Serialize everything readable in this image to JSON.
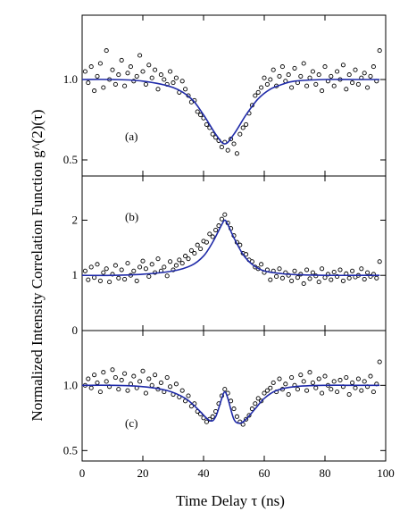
{
  "figure": {
    "ylabel": "Normalized Intensity Correlation Function g^(2)(τ)",
    "xlabel": "Time Delay τ (ns)"
  },
  "colors": {
    "fit": "#1f2aa8",
    "points": "#000000",
    "axes": "#000000"
  },
  "chart_data": [
    {
      "type": "scatter",
      "panel_label": "(a)",
      "xlim": [
        0,
        100
      ],
      "ylim": [
        0.4,
        1.4
      ],
      "xticks": [
        0,
        20,
        40,
        60,
        80,
        100
      ],
      "yticks": [
        0.5,
        1.0
      ],
      "ytick_labels": [
        "0.5",
        "1.0"
      ],
      "show_xtick_labels": false,
      "fit": {
        "x": [
          0,
          10,
          20,
          30,
          36,
          40,
          44,
          47,
          50,
          54,
          58,
          62,
          66,
          70,
          80,
          90,
          98
        ],
        "y": [
          1.0,
          1.0,
          0.99,
          0.95,
          0.88,
          0.78,
          0.66,
          0.6,
          0.66,
          0.78,
          0.88,
          0.94,
          0.97,
          0.99,
          1.0,
          1.0,
          1.0
        ]
      },
      "points": {
        "x": [
          1,
          2,
          3,
          4,
          5,
          6,
          7,
          8,
          9,
          10,
          11,
          12,
          13,
          14,
          15,
          16,
          17,
          18,
          19,
          20,
          21,
          22,
          23,
          24,
          25,
          26,
          27,
          28,
          29,
          30,
          31,
          32,
          33,
          34,
          35,
          36,
          37,
          38,
          39,
          40,
          41,
          42,
          43,
          44,
          45,
          46,
          47,
          48,
          49,
          50,
          51,
          52,
          53,
          54,
          55,
          56,
          57,
          58,
          59,
          60,
          61,
          62,
          63,
          64,
          65,
          66,
          67,
          68,
          69,
          70,
          71,
          72,
          73,
          74,
          75,
          76,
          77,
          78,
          79,
          80,
          81,
          82,
          83,
          84,
          85,
          86,
          87,
          88,
          89,
          90,
          91,
          92,
          93,
          94,
          95,
          96,
          97,
          98
        ],
        "y": [
          1.05,
          0.98,
          1.08,
          0.93,
          1.02,
          1.1,
          0.95,
          1.18,
          1.0,
          1.06,
          0.97,
          1.03,
          1.12,
          0.96,
          1.04,
          1.08,
          0.99,
          1.02,
          1.15,
          1.05,
          0.97,
          1.09,
          1.01,
          1.06,
          0.94,
          1.03,
          1.0,
          0.97,
          1.05,
          0.98,
          1.01,
          0.92,
          0.99,
          0.94,
          0.9,
          0.86,
          0.87,
          0.8,
          0.78,
          0.76,
          0.72,
          0.7,
          0.66,
          0.64,
          0.62,
          0.58,
          0.61,
          0.56,
          0.63,
          0.6,
          0.54,
          0.66,
          0.7,
          0.72,
          0.79,
          0.84,
          0.9,
          0.92,
          0.95,
          1.01,
          0.97,
          1.0,
          1.06,
          0.96,
          1.02,
          1.08,
          0.99,
          1.03,
          0.95,
          1.07,
          0.98,
          1.02,
          1.1,
          0.96,
          1.01,
          1.05,
          0.97,
          1.03,
          0.93,
          1.08,
          0.99,
          1.02,
          0.96,
          1.05,
          1.0,
          1.09,
          0.94,
          1.03,
          0.98,
          1.06,
          0.97,
          1.01,
          1.04,
          0.95,
          1.02,
          1.08,
          0.99,
          1.18
        ]
      }
    },
    {
      "type": "scatter",
      "panel_label": "(b)",
      "xlim": [
        0,
        100
      ],
      "ylim": [
        0,
        2.8
      ],
      "xticks": [
        0,
        20,
        40,
        60,
        80,
        100
      ],
      "yticks": [
        0,
        1,
        2
      ],
      "ytick_labels": [
        "0",
        "1",
        "2"
      ],
      "show_xtick_labels": false,
      "fit": {
        "x": [
          0,
          10,
          20,
          30,
          36,
          40,
          43,
          46,
          47,
          48,
          50,
          53,
          56,
          60,
          66,
          72,
          80,
          90,
          98
        ],
        "y": [
          1.0,
          1.0,
          1.02,
          1.08,
          1.18,
          1.35,
          1.6,
          1.92,
          2.0,
          1.92,
          1.68,
          1.38,
          1.2,
          1.08,
          1.03,
          1.01,
          1.0,
          1.0,
          1.0
        ]
      },
      "points": {
        "x": [
          1,
          2,
          3,
          4,
          5,
          6,
          7,
          8,
          9,
          10,
          11,
          12,
          13,
          14,
          15,
          16,
          17,
          18,
          19,
          20,
          21,
          22,
          23,
          24,
          25,
          26,
          27,
          28,
          29,
          30,
          31,
          32,
          33,
          34,
          35,
          36,
          37,
          38,
          39,
          40,
          41,
          42,
          43,
          44,
          45,
          46,
          47,
          48,
          49,
          50,
          51,
          52,
          53,
          54,
          55,
          56,
          57,
          58,
          59,
          60,
          61,
          62,
          63,
          64,
          65,
          66,
          67,
          68,
          69,
          70,
          71,
          72,
          73,
          74,
          75,
          76,
          77,
          78,
          79,
          80,
          81,
          82,
          83,
          84,
          85,
          86,
          87,
          88,
          89,
          90,
          91,
          92,
          93,
          94,
          95,
          96,
          97,
          98
        ],
        "y": [
          1.08,
          0.92,
          1.15,
          0.96,
          1.2,
          0.9,
          1.05,
          1.12,
          0.88,
          1.02,
          1.18,
          0.95,
          1.1,
          0.93,
          1.22,
          1.0,
          1.08,
          0.9,
          1.15,
          1.26,
          1.12,
          0.98,
          1.2,
          1.05,
          1.3,
          1.08,
          1.15,
          0.99,
          1.25,
          1.1,
          1.18,
          1.28,
          1.22,
          1.35,
          1.3,
          1.45,
          1.4,
          1.55,
          1.48,
          1.62,
          1.6,
          1.75,
          1.7,
          1.82,
          1.9,
          2.02,
          2.1,
          1.95,
          1.85,
          1.72,
          1.6,
          1.55,
          1.4,
          1.38,
          1.28,
          1.25,
          1.15,
          1.12,
          1.2,
          1.05,
          1.1,
          0.92,
          1.08,
          0.98,
          1.12,
          0.95,
          1.05,
          1.0,
          0.9,
          1.08,
          0.96,
          1.02,
          0.85,
          1.1,
          0.94,
          1.05,
          0.99,
          0.88,
          1.12,
          0.96,
          1.02,
          0.92,
          1.06,
          0.98,
          1.1,
          0.9,
          1.03,
          0.95,
          1.08,
          0.97,
          1.0,
          1.12,
          0.93,
          1.05,
          0.98,
          1.02,
          0.95,
          1.25
        ]
      }
    },
    {
      "type": "scatter",
      "panel_label": "(c)",
      "xlim": [
        0,
        100
      ],
      "ylim": [
        0.42,
        1.42
      ],
      "xticks": [
        0,
        20,
        40,
        60,
        80,
        100
      ],
      "xtick_labels": [
        "0",
        "20",
        "40",
        "60",
        "80",
        "100"
      ],
      "yticks": [
        0.5,
        1.0
      ],
      "ytick_labels": [
        "0.5",
        "1.0"
      ],
      "show_xtick_labels": true,
      "fit": {
        "x": [
          0,
          10,
          20,
          28,
          34,
          38,
          42,
          44,
          46,
          47,
          48,
          50,
          52,
          54,
          57,
          60,
          64,
          70,
          80,
          90,
          98
        ],
        "y": [
          1.0,
          1.0,
          0.99,
          0.96,
          0.9,
          0.82,
          0.73,
          0.76,
          0.9,
          0.95,
          0.9,
          0.74,
          0.71,
          0.74,
          0.82,
          0.9,
          0.96,
          0.99,
          1.0,
          1.0,
          1.0
        ]
      },
      "points": {
        "x": [
          1,
          2,
          3,
          4,
          5,
          6,
          7,
          8,
          9,
          10,
          11,
          12,
          13,
          14,
          15,
          16,
          17,
          18,
          19,
          20,
          21,
          22,
          23,
          24,
          25,
          26,
          27,
          28,
          29,
          30,
          31,
          32,
          33,
          34,
          35,
          36,
          37,
          38,
          39,
          40,
          41,
          42,
          43,
          44,
          45,
          46,
          47,
          48,
          49,
          50,
          51,
          52,
          53,
          54,
          55,
          56,
          57,
          58,
          59,
          60,
          61,
          62,
          63,
          64,
          65,
          66,
          67,
          68,
          69,
          70,
          71,
          72,
          73,
          74,
          75,
          76,
          77,
          78,
          79,
          80,
          81,
          82,
          83,
          84,
          85,
          86,
          87,
          88,
          89,
          90,
          91,
          92,
          93,
          94,
          95,
          96,
          97,
          98
        ],
        "y": [
          1.0,
          1.05,
          0.98,
          1.08,
          1.02,
          0.95,
          1.1,
          1.03,
          0.99,
          1.12,
          1.06,
          0.97,
          1.04,
          1.09,
          0.96,
          1.01,
          1.07,
          0.98,
          1.03,
          1.11,
          0.94,
          1.05,
          1.0,
          1.08,
          0.97,
          1.02,
          0.95,
          1.06,
          0.99,
          0.93,
          1.01,
          0.91,
          0.96,
          0.88,
          0.92,
          0.84,
          0.86,
          0.8,
          0.78,
          0.75,
          0.72,
          0.74,
          0.76,
          0.8,
          0.86,
          0.92,
          0.97,
          0.94,
          0.88,
          0.82,
          0.76,
          0.72,
          0.7,
          0.74,
          0.77,
          0.82,
          0.86,
          0.9,
          0.88,
          0.94,
          0.96,
          0.98,
          1.02,
          0.95,
          1.05,
          0.97,
          1.01,
          0.93,
          1.06,
          1.0,
          0.97,
          1.08,
          1.03,
          0.96,
          1.1,
          1.02,
          0.98,
          1.05,
          0.94,
          1.07,
          1.0,
          0.97,
          1.03,
          0.95,
          1.04,
          0.99,
          1.06,
          0.93,
          1.02,
          0.98,
          1.05,
          0.96,
          1.03,
          0.99,
          1.07,
          0.95,
          1.01,
          1.18
        ]
      }
    }
  ]
}
